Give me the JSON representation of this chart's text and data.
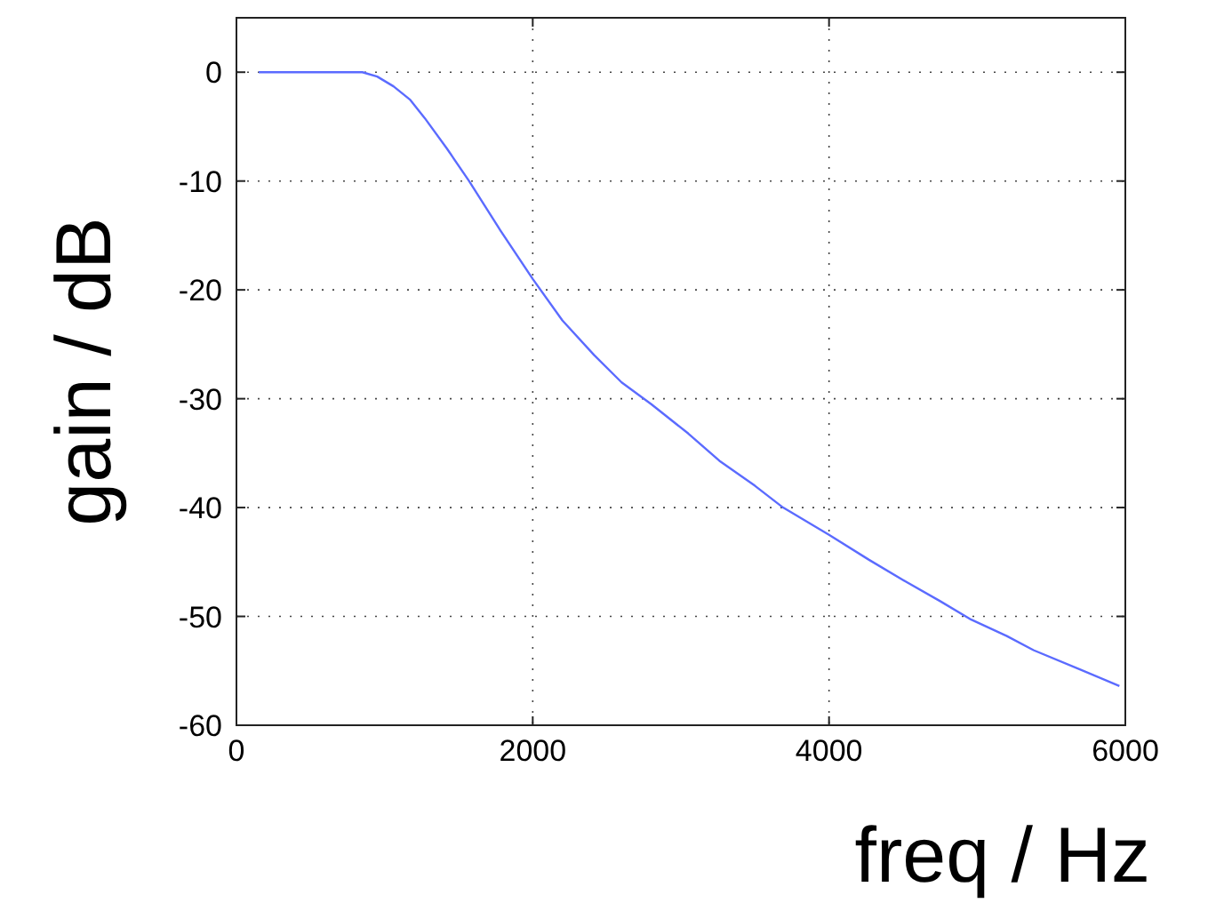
{
  "chart_data": {
    "type": "line",
    "xlabel": "freq / Hz",
    "ylabel": "gain / dB",
    "x": [
      150,
      400,
      700,
      850,
      950,
      1060,
      1170,
      1270,
      1420,
      1570,
      1780,
      2000,
      2200,
      2415,
      2600,
      2800,
      3050,
      3260,
      3500,
      3690,
      4000,
      4270,
      4530,
      4750,
      4960,
      5200,
      5380,
      5700,
      5960
    ],
    "series": [
      {
        "color": "#5b6bff",
        "values": [
          0,
          0,
          0,
          0,
          -0.4,
          -1.3,
          -2.5,
          -4.2,
          -7,
          -10,
          -14.5,
          -19,
          -22.8,
          -26,
          -28.5,
          -30.5,
          -33.2,
          -35.7,
          -38,
          -40,
          -42.5,
          -44.8,
          -46.9,
          -48.6,
          -50.3,
          -51.8,
          -53.1,
          -54.9,
          -56.4
        ]
      }
    ],
    "xlim": [
      0,
      6000
    ],
    "xticks": [
      0,
      2000,
      4000,
      6000
    ],
    "ylim": [
      -60,
      5
    ],
    "yticks": [
      -60,
      -50,
      -40,
      -30,
      -20,
      -10,
      0
    ],
    "grid": true,
    "line_style": "solid",
    "marker": "none"
  }
}
